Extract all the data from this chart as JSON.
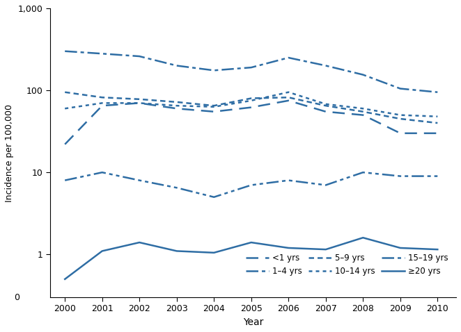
{
  "years": [
    2000,
    2001,
    2002,
    2003,
    2004,
    2005,
    2006,
    2007,
    2008,
    2009,
    2010
  ],
  "lt1": [
    22,
    65,
    70,
    60,
    55,
    62,
    75,
    55,
    50,
    30,
    30
  ],
  "age1_4": [
    300,
    280,
    260,
    200,
    175,
    190,
    250,
    200,
    155,
    105,
    95
  ],
  "age5_9": [
    95,
    82,
    78,
    72,
    65,
    80,
    82,
    65,
    55,
    45,
    40
  ],
  "age10_14": [
    60,
    70,
    70,
    65,
    63,
    75,
    95,
    68,
    60,
    50,
    48
  ],
  "age15_19": [
    8,
    10,
    8,
    6.5,
    5,
    7,
    8,
    7,
    10,
    9,
    9
  ],
  "ge20": [
    0.5,
    1.1,
    1.4,
    1.1,
    1.05,
    1.4,
    1.2,
    1.15,
    1.6,
    1.2,
    1.15
  ],
  "color": "#2E6DA4",
  "ylabel": "Incidence per 100,000",
  "xlabel": "Year",
  "legend_labels": [
    "<1 yrs",
    "1–4 yrs",
    "5–9 yrs",
    "10–14 yrs",
    "15–19 yrs",
    "≥20 yrs"
  ],
  "ylim_low": 0.3,
  "ylim_high": 1000,
  "figwidth": 6.62,
  "figheight": 4.78,
  "dpi": 100
}
